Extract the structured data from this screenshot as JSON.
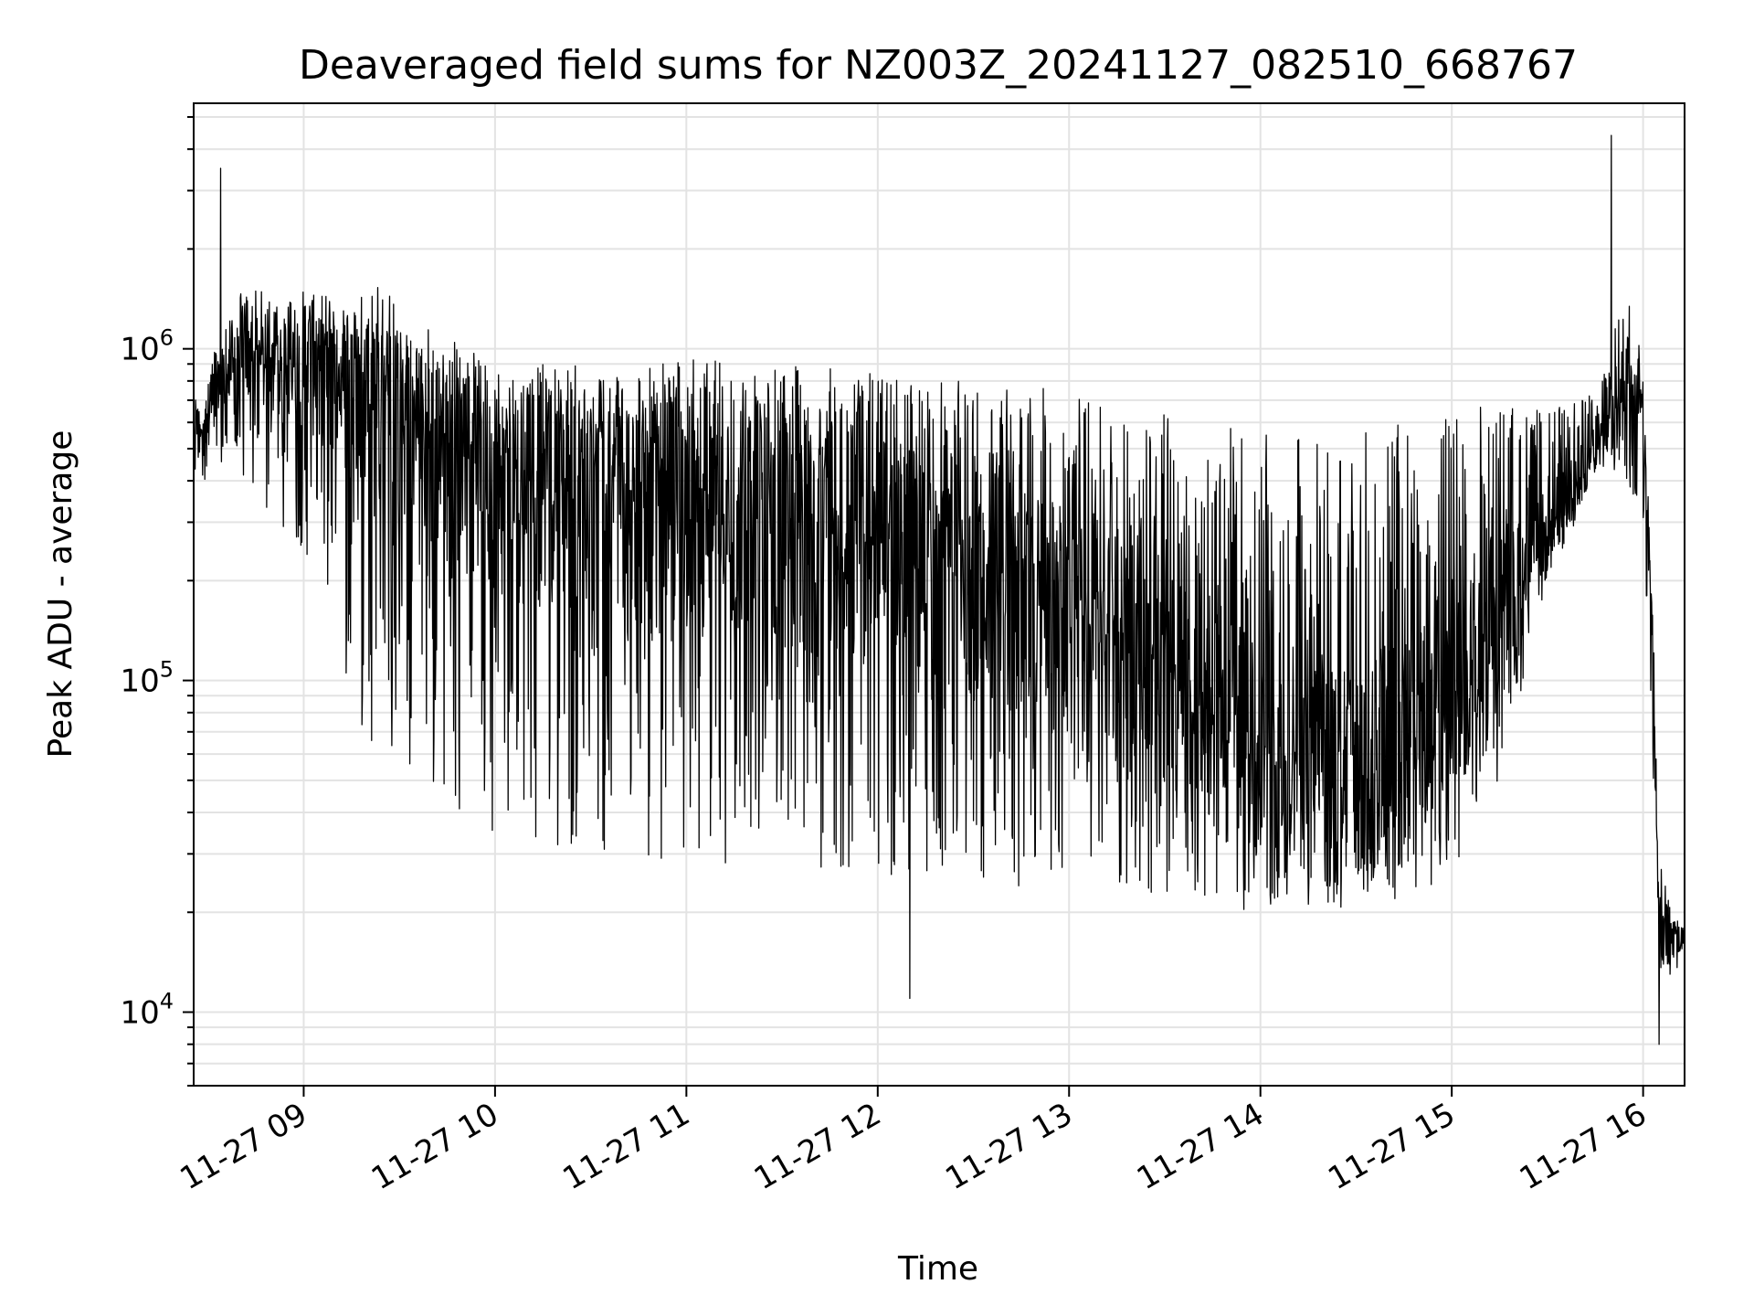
{
  "chart_data": {
    "type": "line",
    "title": "Deaveraged field sums for NZ003Z_20241127_082510_668767",
    "xlabel": "Time",
    "ylabel": "Peak ADU - average",
    "yscale": "log",
    "ylim": [
      6000,
      5500000
    ],
    "xlim": [
      "2024-11-27 08:25:30",
      "2024-11-27 16:13:00"
    ],
    "grid": true,
    "x_ticks": [
      {
        "label": "11-27 09",
        "t": "2024-11-27 09:00"
      },
      {
        "label": "11-27 10",
        "t": "2024-11-27 10:00"
      },
      {
        "label": "11-27 11",
        "t": "2024-11-27 11:00"
      },
      {
        "label": "11-27 12",
        "t": "2024-11-27 12:00"
      },
      {
        "label": "11-27 13",
        "t": "2024-11-27 13:00"
      },
      {
        "label": "11-27 14",
        "t": "2024-11-27 14:00"
      },
      {
        "label": "11-27 15",
        "t": "2024-11-27 15:00"
      },
      {
        "label": "11-27 16",
        "t": "2024-11-27 16:00"
      }
    ],
    "y_ticks": [
      {
        "base": "10",
        "exp": "4",
        "value": 10000
      },
      {
        "base": "10",
        "exp": "5",
        "value": 100000
      },
      {
        "base": "10",
        "exp": "6",
        "value": 1000000
      }
    ],
    "series": [
      {
        "color": "#000000",
        "envelope": {
          "x": [
            "2024-11-27 08:25",
            "2024-11-27 08:40",
            "2024-11-27 08:50",
            "2024-11-27 09:00",
            "2024-11-27 09:20",
            "2024-11-27 09:40",
            "2024-11-27 10:00",
            "2024-11-27 10:30",
            "2024-11-27 11:00",
            "2024-11-27 11:30",
            "2024-11-27 12:00",
            "2024-11-27 12:30",
            "2024-11-27 13:00",
            "2024-11-27 13:30",
            "2024-11-27 14:00",
            "2024-11-27 14:30",
            "2024-11-27 15:00",
            "2024-11-27 15:15",
            "2024-11-27 15:30",
            "2024-11-27 15:45",
            "2024-11-27 15:55",
            "2024-11-27 16:00",
            "2024-11-27 16:03",
            "2024-11-27 16:05",
            "2024-11-27 16:08",
            "2024-11-27 16:13"
          ],
          "upper": [
            700000,
            1500000,
            1500000,
            1500000,
            1300000,
            1000000,
            900000,
            900000,
            950000,
            900000,
            850000,
            800000,
            750000,
            650000,
            550000,
            550000,
            650000,
            700000,
            650000,
            750000,
            1500000,
            900000,
            300000,
            30000,
            22000,
            20000
          ],
          "median": [
            550000,
            900000,
            900000,
            900000,
            800000,
            550000,
            400000,
            350000,
            330000,
            300000,
            250000,
            200000,
            150000,
            100000,
            60000,
            50000,
            70000,
            140000,
            280000,
            500000,
            700000,
            600000,
            120000,
            18000,
            16000,
            17000
          ],
          "lower": [
            400000,
            400000,
            300000,
            250000,
            60000,
            40000,
            35000,
            30000,
            28000,
            28000,
            26000,
            24000,
            24000,
            22000,
            20000,
            20000,
            25000,
            50000,
            200000,
            400000,
            400000,
            300000,
            60000,
            13000,
            12000,
            15000
          ]
        },
        "spikes": [
          {
            "t": "2024-11-27 08:34",
            "value": 3500000
          },
          {
            "t": "2024-11-27 15:50",
            "value": 4400000
          },
          {
            "t": "2024-11-27 12:10",
            "value": 11000
          },
          {
            "t": "2024-11-27 16:05",
            "value": 8000
          }
        ]
      }
    ]
  }
}
